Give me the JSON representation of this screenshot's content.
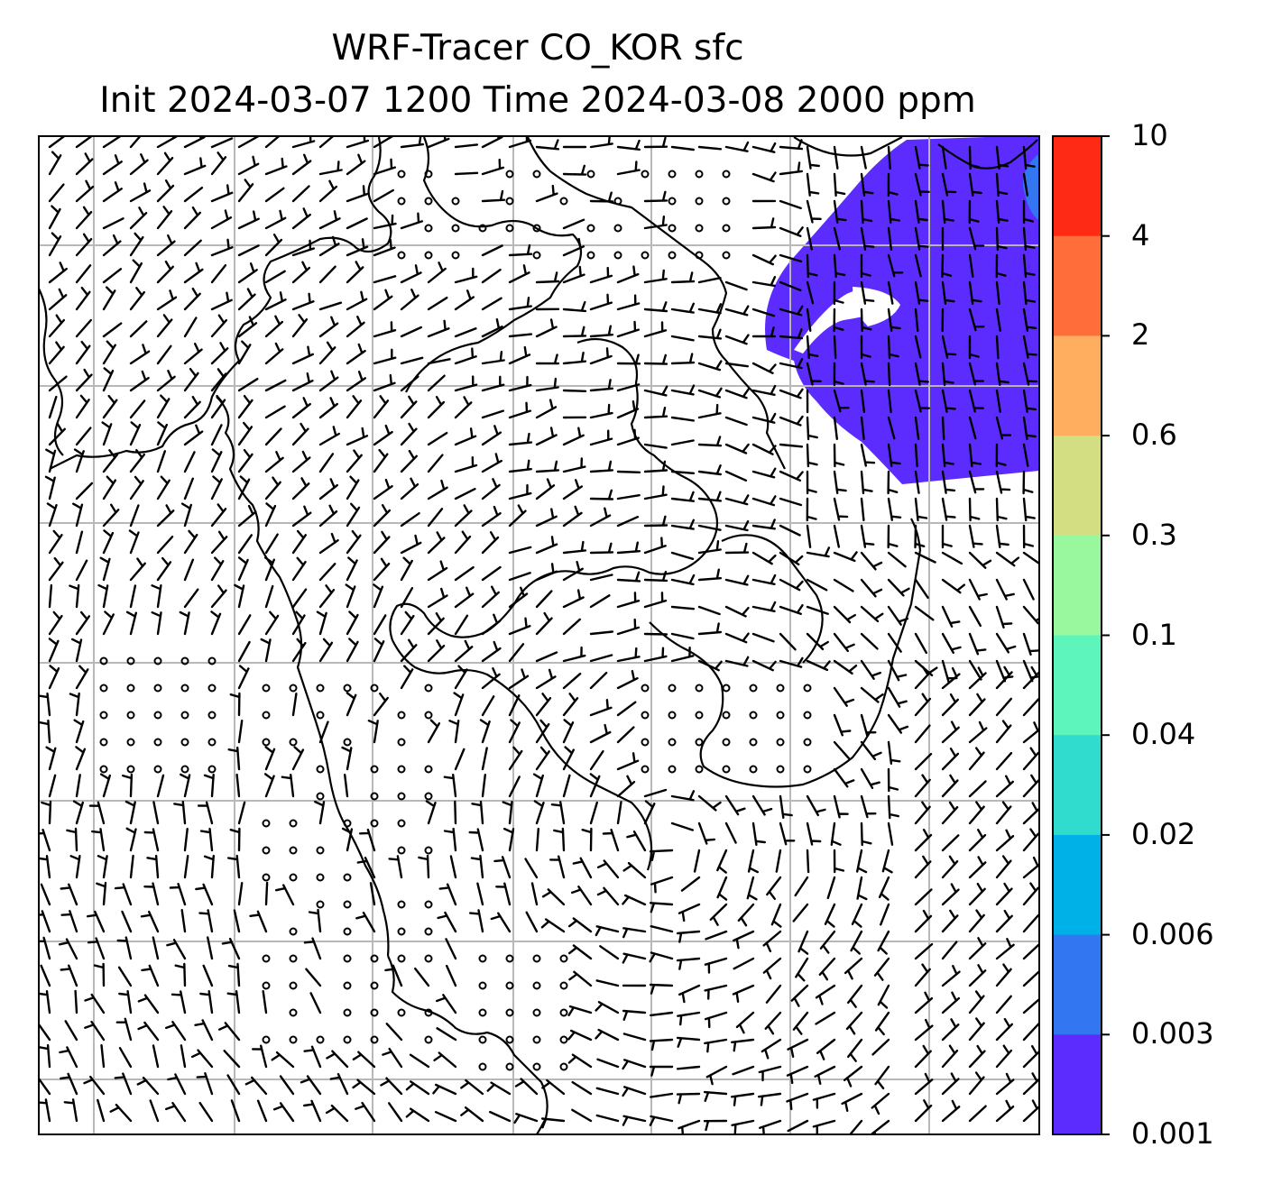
{
  "title": {
    "line1": "WRF-Tracer CO_KOR sfc",
    "line2": "Init 2024-03-07 1200 Time 2024-03-08 2000 ppm"
  },
  "map": {
    "field": "CO_KOR tracer concentration",
    "wind_symbol": "wind-barbs",
    "calm_symbol": "open-circle"
  },
  "colorbar": {
    "ticks": [
      "10",
      "4",
      "2",
      "0.6",
      "0.3",
      "0.1",
      "0.04",
      "0.02",
      "0.006",
      "0.003",
      "0.001"
    ],
    "levels_top_to_bottom": [
      10,
      4,
      2,
      0.6,
      0.3,
      0.1,
      0.04,
      0.02,
      0.006,
      0.003,
      0.001
    ],
    "colors_top_to_bottom": [
      "#ff2a16",
      "#ff6e3a",
      "#ffad5e",
      "#d3dd82",
      "#99f79e",
      "#5ef5bc",
      "#2fdccd",
      "#00b1e8",
      "#3277f1",
      "#5c2cff"
    ]
  },
  "colors": {
    "plume_outer": "#5c2cff",
    "plume_inner": "#3277f1",
    "gridline": "#b8b8b8",
    "coastline": "#000000"
  }
}
